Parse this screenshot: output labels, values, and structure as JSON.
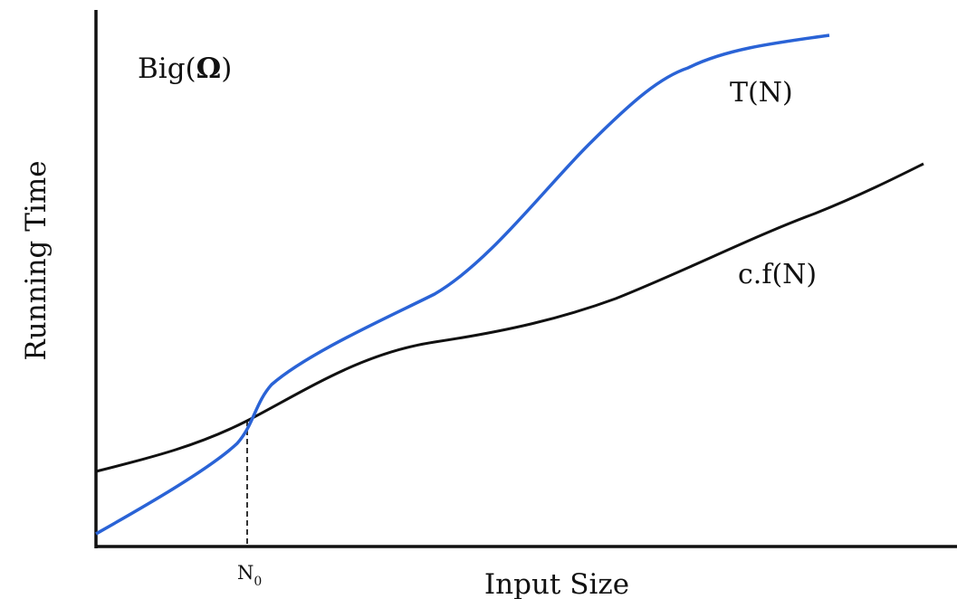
{
  "title": {
    "prefix": "Big(",
    "symbol": "Ω",
    "suffix": ")"
  },
  "axes": {
    "x_label": "Input Size",
    "y_label": "Running Time"
  },
  "marker": {
    "base": "N",
    "subscript": "0"
  },
  "curves": {
    "upper": {
      "label": "T(N)",
      "color": "#2a63d6"
    },
    "lower": {
      "label": "c.f(N)",
      "color": "#111111"
    }
  },
  "colors": {
    "axis": "#111111",
    "guide": "#333333"
  }
}
